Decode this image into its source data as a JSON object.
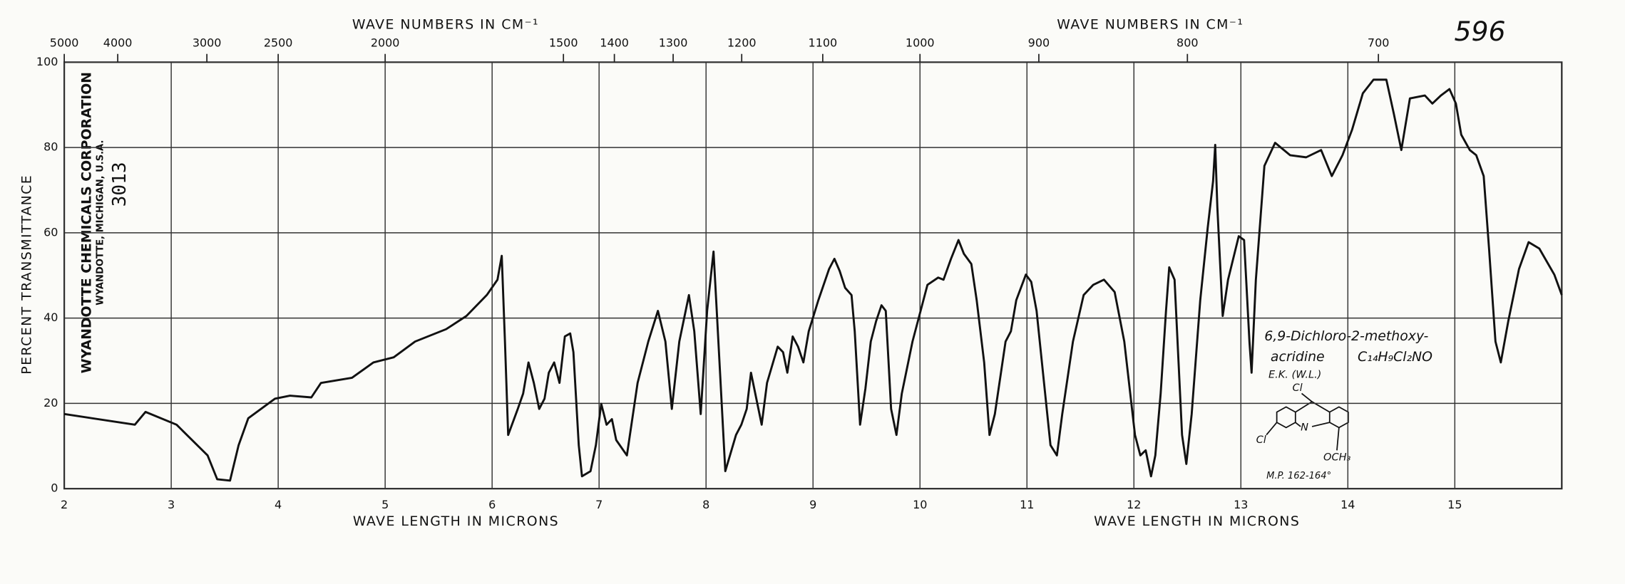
{
  "chart_data": {
    "type": "line",
    "title": "596",
    "top_axis_label": "WAVE NUMBERS IN CM⁻¹",
    "top_axis_label_2": "WAVE NUMBERS IN CM⁻¹",
    "x_label": "WAVE LENGTH IN MICRONS",
    "x_label_2": "WAVE LENGTH IN MICRONS",
    "y_label": "PERCENT TRANSMITTANCE",
    "annotations": {
      "company": "WYANDOTTE CHEMICALS CORPORATION",
      "address": "WYANDOTTE, MICHIGAN, U.S.A.",
      "number": "3013",
      "compound_1": "6,9-Dichloro-2-methoxy-",
      "compound_2": "acridine",
      "formula": "C₁₄H₉Cl₂NO",
      "analyst": "E.K. (W.L.)",
      "atom_cl_top": "Cl",
      "atom_cl_left": "Cl",
      "atom_n": "N",
      "group_och3": "OCH₃",
      "melting_point": "M.P. 162-164°"
    },
    "x": [
      2.0,
      2.66,
      2.76,
      3.05,
      3.34,
      3.43,
      3.55,
      3.63,
      3.72,
      3.97,
      4.11,
      4.31,
      4.4,
      4.69,
      4.89,
      5.08,
      5.28,
      5.57,
      5.76,
      5.95,
      6.05,
      6.09,
      6.12,
      6.15,
      6.24,
      6.29,
      6.34,
      6.39,
      6.44,
      6.49,
      6.53,
      6.58,
      6.63,
      6.68,
      6.73,
      6.76,
      6.81,
      6.84,
      6.92,
      6.97,
      7.02,
      7.07,
      7.12,
      7.16,
      7.26,
      7.36,
      7.46,
      7.55,
      7.62,
      7.68,
      7.75,
      7.84,
      7.89,
      7.95,
      8.01,
      8.07,
      8.1,
      8.18,
      8.28,
      8.33,
      8.38,
      8.42,
      8.47,
      8.52,
      8.57,
      8.67,
      8.72,
      8.76,
      8.81,
      8.86,
      8.91,
      8.96,
      9.05,
      9.15,
      9.2,
      9.25,
      9.3,
      9.36,
      9.39,
      9.44,
      9.49,
      9.54,
      9.59,
      9.64,
      9.68,
      9.73,
      9.78,
      9.83,
      9.93,
      10.07,
      10.17,
      10.22,
      10.29,
      10.36,
      10.41,
      10.48,
      10.53,
      10.6,
      10.65,
      10.7,
      10.8,
      10.85,
      10.9,
      10.99,
      11.04,
      11.09,
      11.17,
      11.22,
      11.28,
      11.33,
      11.43,
      11.53,
      11.62,
      11.72,
      11.82,
      11.91,
      12.01,
      12.06,
      12.11,
      12.16,
      12.2,
      12.25,
      12.3,
      12.33,
      12.38,
      12.45,
      12.49,
      12.54,
      12.62,
      12.69,
      12.74,
      12.76,
      12.78,
      12.83,
      12.88,
      12.98,
      13.03,
      13.08,
      13.1,
      13.14,
      13.22,
      13.32,
      13.46,
      13.61,
      13.75,
      13.85,
      13.95,
      14.04,
      14.14,
      14.24,
      14.36,
      14.43,
      14.5,
      14.58,
      14.72,
      14.79,
      14.87,
      14.95,
      15.01,
      15.06,
      15.14,
      15.2,
      15.27,
      15.32,
      15.38,
      15.43,
      15.5,
      15.6,
      15.69,
      15.79,
      15.93,
      16.0
    ],
    "series": [
      {
        "name": "6,9-Dichloro-2-methoxy-acridine",
        "color": "#111111",
        "values": [
          17.5,
          15.0,
          18.0,
          15.0,
          7.8,
          2.2,
          1.9,
          10.2,
          16.5,
          21.1,
          21.8,
          21.4,
          24.8,
          26.0,
          29.6,
          30.8,
          34.5,
          37.4,
          40.5,
          45.4,
          49.0,
          54.6,
          34.5,
          12.6,
          18.7,
          22.3,
          29.6,
          24.8,
          18.7,
          21.1,
          27.2,
          29.6,
          24.8,
          35.7,
          36.4,
          32.0,
          10.2,
          2.9,
          4.1,
          10.2,
          19.9,
          15.0,
          16.3,
          11.4,
          7.8,
          24.8,
          34.5,
          41.7,
          34.5,
          18.7,
          34.5,
          45.4,
          36.9,
          17.5,
          41.7,
          55.6,
          41.7,
          4.1,
          12.6,
          15.0,
          18.7,
          27.2,
          21.1,
          15.0,
          24.8,
          33.3,
          32.0,
          27.2,
          35.7,
          33.3,
          29.6,
          36.9,
          44.2,
          51.5,
          53.9,
          51.0,
          47.1,
          45.4,
          36.9,
          15.0,
          23.5,
          34.5,
          39.3,
          43.0,
          41.7,
          18.7,
          12.6,
          22.3,
          34.5,
          47.8,
          49.5,
          49.0,
          53.9,
          58.3,
          55.1,
          52.7,
          44.2,
          29.6,
          12.6,
          17.5,
          34.5,
          36.9,
          44.2,
          50.2,
          48.5,
          41.7,
          22.3,
          10.2,
          7.8,
          17.5,
          34.5,
          45.4,
          47.8,
          49.0,
          46.1,
          34.5,
          12.6,
          7.8,
          9.0,
          2.9,
          7.8,
          22.3,
          41.7,
          51.9,
          49.0,
          12.6,
          5.8,
          17.5,
          44.2,
          61.2,
          72.1,
          80.6,
          66.0,
          40.5,
          49.0,
          59.2,
          58.3,
          34.5,
          27.2,
          49.0,
          75.7,
          81.1,
          78.2,
          77.7,
          79.4,
          73.3,
          78.2,
          84.2,
          92.7,
          95.9,
          95.9,
          87.9,
          79.4,
          91.5,
          92.2,
          90.3,
          92.2,
          93.7,
          90.3,
          83.0,
          79.4,
          78.2,
          73.3,
          56.3,
          34.5,
          29.6,
          39.3,
          51.5,
          57.8,
          56.3,
          50.2,
          45.4
        ]
      }
    ],
    "xlim": [
      2,
      16
    ],
    "xticks": [
      2,
      3,
      4,
      5,
      6,
      7,
      8,
      9,
      10,
      11,
      12,
      13,
      14,
      15
    ],
    "x2ticks": [
      5000,
      4000,
      3000,
      2500,
      2000,
      1500,
      1400,
      1300,
      1200,
      1100,
      1000,
      900,
      800,
      700
    ],
    "ylim": [
      0,
      100
    ],
    "yticks": [
      0,
      20,
      40,
      60,
      80,
      100
    ],
    "grid": true
  }
}
